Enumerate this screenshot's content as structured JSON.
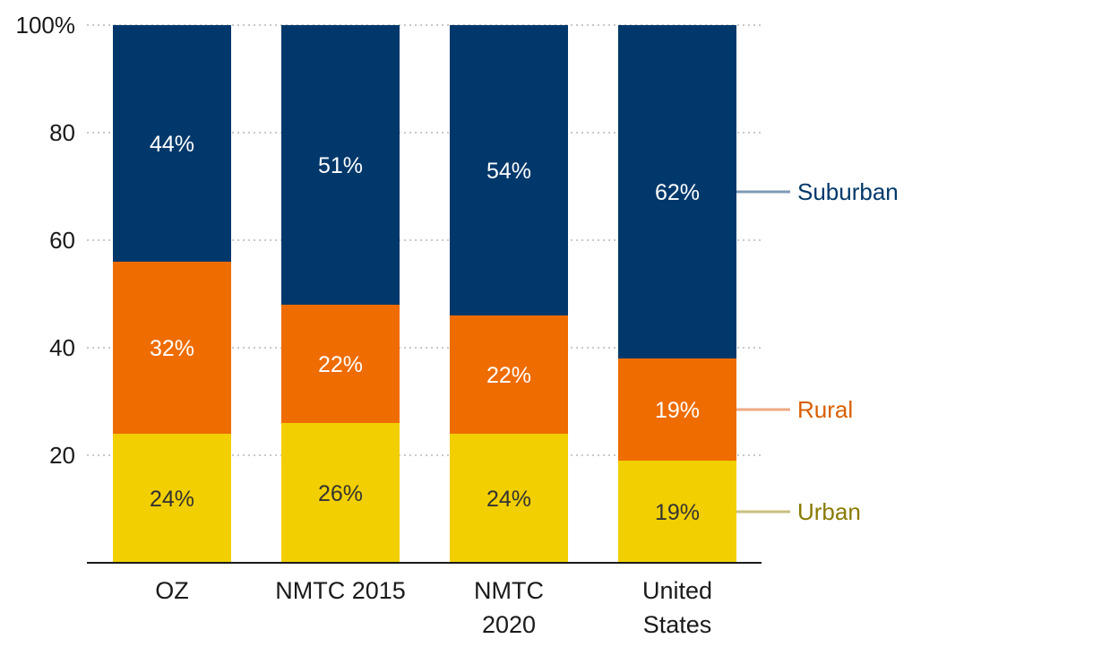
{
  "chart_data": {
    "type": "bar",
    "stacked": true,
    "categories": [
      "OZ",
      "NMTC 2015",
      "NMTC 2020",
      "United States"
    ],
    "category_lines": [
      [
        "OZ"
      ],
      [
        "NMTC 2015"
      ],
      [
        "NMTC",
        "2020"
      ],
      [
        "United",
        "States"
      ]
    ],
    "series": [
      {
        "name": "Urban",
        "values": [
          24,
          26,
          24,
          19
        ],
        "labels": [
          "24%",
          "26%",
          "24%",
          "19%"
        ],
        "color": "#f2cf00",
        "text_color": "#333333",
        "legend_color": "#8a7a00",
        "line_color": "#c9bf7e"
      },
      {
        "name": "Rural",
        "values": [
          32,
          22,
          22,
          19
        ],
        "labels": [
          "32%",
          "22%",
          "22%",
          "19%"
        ],
        "color": "#ee6c00",
        "text_color": "#ffffff",
        "legend_color": "#d95f00",
        "line_color": "#efaa84"
      },
      {
        "name": "Suburban",
        "values": [
          44,
          51,
          54,
          62
        ],
        "labels": [
          "44%",
          "51%",
          "54%",
          "62%"
        ],
        "color": "#00386b",
        "text_color": "#ffffff",
        "legend_color": "#00386b",
        "line_color": "#7f9ab6"
      }
    ],
    "y_ticks": [
      20,
      40,
      60,
      80,
      100
    ],
    "y_tick_labels": [
      "20",
      "40",
      "60",
      "80",
      "100%"
    ],
    "ylim": [
      0,
      100
    ],
    "grid": true,
    "legend": "right"
  }
}
